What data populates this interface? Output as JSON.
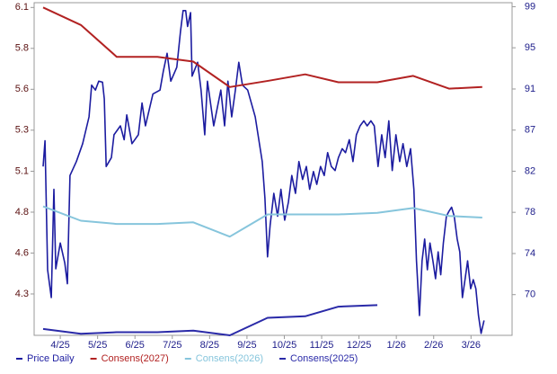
{
  "chart_data": {
    "type": "line",
    "xticks": [
      {
        "value": 1,
        "label": "4/25"
      },
      {
        "value": 2,
        "label": "5/25"
      },
      {
        "value": 3,
        "label": "6/25"
      },
      {
        "value": 4,
        "label": "7/25"
      },
      {
        "value": 5,
        "label": "8/25"
      },
      {
        "value": 6,
        "label": "9/25"
      },
      {
        "value": 7,
        "label": "10/25"
      },
      {
        "value": 8,
        "label": "11/25"
      },
      {
        "value": 9,
        "label": "12/25"
      },
      {
        "value": 10,
        "label": "1/26"
      },
      {
        "value": 11,
        "label": "2/26"
      },
      {
        "value": 12,
        "label": "3/26"
      }
    ],
    "xlim": [
      0.3,
      13.1
    ],
    "ylim": [
      4.04,
      6.13
    ],
    "yticks": [
      {
        "value": 4.3,
        "label": "4.3"
      },
      {
        "value": 4.557,
        "label": "4.6"
      },
      {
        "value": 4.814,
        "label": "4.8"
      },
      {
        "value": 5.071,
        "label": "5.1"
      },
      {
        "value": 5.329,
        "label": "5.3"
      },
      {
        "value": 5.586,
        "label": "5.6"
      },
      {
        "value": 5.843,
        "label": "5.8"
      },
      {
        "value": 6.1,
        "label": "6.1"
      }
    ],
    "y2lim": [
      65.9,
      99.4
    ],
    "y2ticks": [
      {
        "value": 70,
        "label": "70"
      },
      {
        "value": 74.14,
        "label": "74"
      },
      {
        "value": 78.29,
        "label": "78"
      },
      {
        "value": 82.43,
        "label": "82"
      },
      {
        "value": 86.57,
        "label": "87"
      },
      {
        "value": 90.71,
        "label": "91"
      },
      {
        "value": 94.86,
        "label": "95"
      },
      {
        "value": 99,
        "label": "99"
      }
    ],
    "legend": "bottom",
    "series": [
      {
        "name": "Price Daily",
        "color": "#1c1ca0",
        "axis": "y2",
        "x": [
          0.54,
          0.59,
          0.66,
          0.76,
          0.83,
          0.88,
          1.0,
          1.12,
          1.19,
          1.26,
          1.43,
          1.6,
          1.77,
          1.84,
          1.94,
          2.03,
          2.13,
          2.18,
          2.23,
          2.37,
          2.44,
          2.61,
          2.71,
          2.78,
          2.92,
          3.09,
          3.19,
          3.28,
          3.48,
          3.67,
          3.76,
          3.86,
          3.96,
          4.12,
          4.22,
          4.29,
          4.36,
          4.41,
          4.49,
          4.53,
          4.68,
          4.77,
          4.87,
          4.94,
          5.11,
          5.3,
          5.4,
          5.49,
          5.59,
          5.69,
          5.78,
          5.88,
          6.02,
          6.22,
          6.41,
          6.48,
          6.55,
          6.62,
          6.72,
          6.82,
          6.91,
          7.01,
          7.11,
          7.2,
          7.3,
          7.39,
          7.49,
          7.59,
          7.68,
          7.78,
          7.87,
          7.97,
          8.07,
          8.16,
          8.26,
          8.36,
          8.45,
          8.55,
          8.64,
          8.74,
          8.84,
          8.93,
          9.03,
          9.13,
          9.22,
          9.32,
          9.41,
          9.51,
          9.61,
          9.7,
          9.8,
          9.89,
          9.99,
          10.09,
          10.18,
          10.28,
          10.38,
          10.47,
          10.54,
          10.62,
          10.69,
          10.76,
          10.83,
          10.9,
          10.98,
          11.05,
          11.12,
          11.19,
          11.26,
          11.34,
          11.41,
          11.48,
          11.55,
          11.63,
          11.7,
          11.77,
          11.84,
          11.91,
          11.99,
          12.06,
          12.13,
          12.2,
          12.27,
          12.35
        ],
        "values": [
          82.9,
          85.5,
          72.5,
          69.7,
          80.6,
          72.6,
          75.2,
          73.2,
          71.1,
          82.0,
          83.4,
          85.2,
          87.9,
          91.1,
          90.6,
          91.5,
          91.4,
          89.7,
          82.9,
          83.8,
          86.1,
          87.0,
          85.6,
          88.1,
          85.2,
          86.1,
          89.3,
          87.0,
          90.2,
          90.6,
          92.5,
          94.3,
          91.5,
          92.9,
          96.5,
          98.6,
          98.6,
          97.0,
          98.4,
          92.0,
          93.4,
          90.6,
          86.1,
          91.5,
          87.0,
          90.6,
          87.0,
          91.5,
          87.9,
          90.6,
          93.4,
          91.1,
          90.6,
          87.9,
          83.4,
          79.7,
          73.8,
          77.0,
          80.2,
          77.9,
          80.6,
          77.5,
          79.3,
          82.0,
          80.2,
          83.4,
          81.6,
          82.9,
          80.6,
          82.4,
          81.1,
          82.9,
          82.0,
          84.3,
          82.9,
          82.5,
          83.8,
          84.7,
          84.3,
          85.6,
          83.4,
          86.1,
          87.0,
          87.5,
          87.0,
          87.5,
          87.0,
          82.9,
          86.1,
          83.8,
          87.5,
          82.5,
          86.1,
          83.4,
          85.2,
          82.9,
          84.7,
          80.6,
          73.4,
          67.9,
          73.4,
          75.6,
          72.5,
          75.2,
          73.4,
          71.6,
          74.3,
          72.0,
          75.2,
          77.9,
          78.4,
          78.8,
          77.9,
          75.6,
          74.3,
          69.7,
          71.5,
          73.4,
          70.6,
          71.5,
          70.6,
          67.9,
          66.1,
          67.4
        ]
      },
      {
        "name": "Consens(2027)",
        "color": "#b22222",
        "x": [
          0.54,
          1.55,
          2.51,
          3.6,
          4.56,
          5.54,
          6.6,
          7.56,
          8.45,
          9.49,
          10.45,
          11.41,
          12.3
        ],
        "values": [
          6.1,
          5.99,
          5.79,
          5.79,
          5.76,
          5.6,
          5.64,
          5.68,
          5.63,
          5.63,
          5.67,
          5.59,
          5.6
        ]
      },
      {
        "name": "Consens(2026)",
        "color": "#86c5dc",
        "x": [
          0.54,
          1.55,
          2.51,
          3.6,
          4.56,
          5.54,
          6.55,
          7.56,
          8.45,
          9.49,
          10.45,
          11.41,
          12.3
        ],
        "values": [
          4.85,
          4.76,
          4.74,
          4.74,
          4.75,
          4.66,
          4.8,
          4.8,
          4.8,
          4.81,
          4.84,
          4.79,
          4.78
        ]
      },
      {
        "name": "Consens(2025)",
        "color": "#2a2aa8",
        "x": [
          0.54,
          1.55,
          2.51,
          3.6,
          4.56,
          5.54,
          6.55,
          7.56,
          8.45,
          9.49
        ],
        "values": [
          4.08,
          4.05,
          4.06,
          4.06,
          4.07,
          4.04,
          4.15,
          4.16,
          4.22,
          4.23
        ]
      }
    ]
  }
}
